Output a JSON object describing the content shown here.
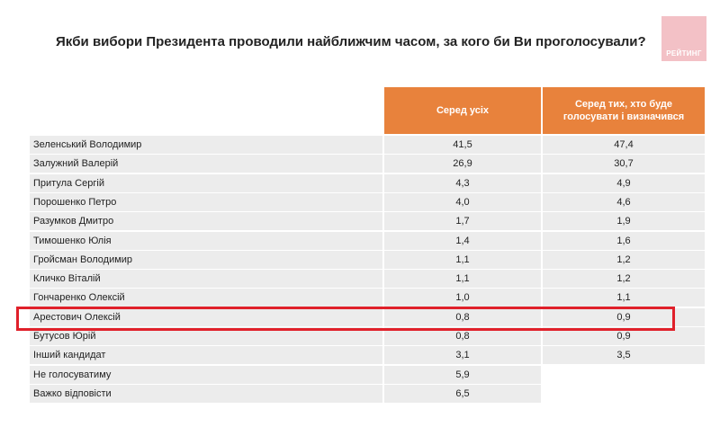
{
  "header": {
    "title": "Якби вибори Президента проводили найближчим часом, за кого би Ви проголосували?",
    "logo": "РЕЙТИНГ"
  },
  "table": {
    "columns": [
      "Серед усіх",
      "Серед тих, хто буде голосувати і визначився"
    ],
    "rows": [
      [
        "Зеленський Володимир",
        "41,5",
        "47,4"
      ],
      [
        "Залужний Валерій",
        "26,9",
        "30,7"
      ],
      [
        "Притула Сергій",
        "4,3",
        "4,9"
      ],
      [
        "Порошенко Петро",
        "4,0",
        "4,6"
      ],
      [
        "Разумков Дмитро",
        "1,7",
        "1,9"
      ],
      [
        "Тимошенко Юлія",
        "1,4",
        "1,6"
      ],
      [
        "Гройсман Володимир",
        "1,1",
        "1,2"
      ],
      [
        "Кличко Віталій",
        "1,1",
        "1,2"
      ],
      [
        "Гончаренко Олексій",
        "1,0",
        "1,1"
      ],
      [
        "Арестович Олексій",
        "0,8",
        "0,9"
      ],
      [
        "Бутусов Юрій",
        "0,8",
        "0,9"
      ],
      [
        "Інший кандидат",
        "3,1",
        "3,5"
      ],
      [
        "Не голосуватиму",
        "5,9"
      ],
      [
        "Важко відповісти",
        "6,5"
      ]
    ]
  }
}
